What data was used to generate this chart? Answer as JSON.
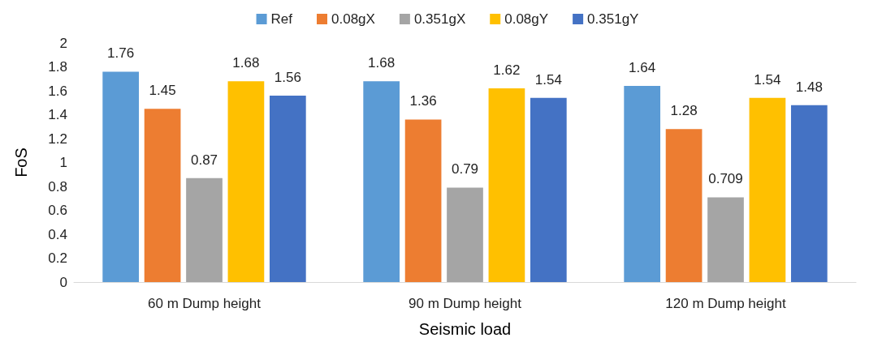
{
  "chart_data": {
    "type": "bar",
    "xlabel": "Seismic load",
    "ylabel": "FoS",
    "categories": [
      "60 m Dump height",
      "90 m Dump height",
      "120 m Dump height"
    ],
    "series": [
      {
        "name": "Ref",
        "color": "#5b9bd5",
        "values": [
          1.76,
          1.68,
          1.64
        ]
      },
      {
        "name": "0.08gX",
        "color": "#ed7d31",
        "values": [
          1.45,
          1.36,
          1.28
        ]
      },
      {
        "name": "0.351gX",
        "color": "#a5a5a5",
        "values": [
          0.87,
          0.79,
          0.709
        ]
      },
      {
        "name": "0.08gY",
        "color": "#ffc000",
        "values": [
          1.68,
          1.62,
          1.54
        ]
      },
      {
        "name": "0.351gY",
        "color": "#4472c4",
        "values": [
          1.56,
          1.54,
          1.48
        ]
      }
    ],
    "ylim": [
      0,
      2
    ],
    "yticks": [
      0,
      0.2,
      0.4,
      0.6,
      0.8,
      1,
      1.2,
      1.4,
      1.6,
      1.8,
      2
    ],
    "grid": false,
    "legend": "top",
    "data_labels": true
  }
}
